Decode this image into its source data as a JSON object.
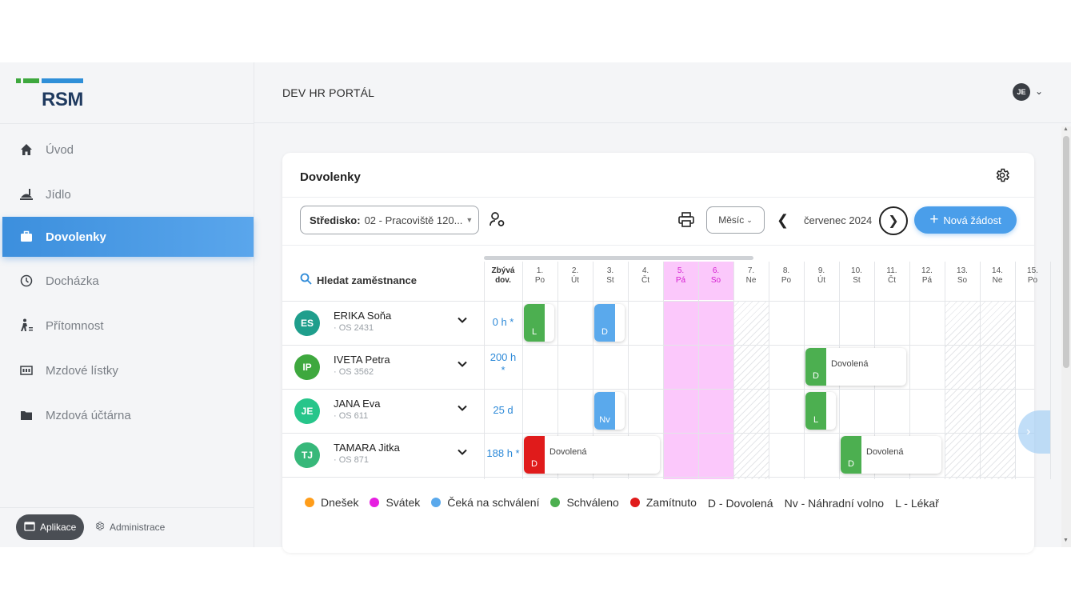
{
  "app": {
    "logo_text": "RSM",
    "portal_title": "DEV HR PORTÁL",
    "user_initials": "JE"
  },
  "sidebar": {
    "items": [
      {
        "label": "Úvod",
        "icon": "home-icon"
      },
      {
        "label": "Jídlo",
        "icon": "food-icon"
      },
      {
        "label": "Dovolenky",
        "icon": "briefcase-icon",
        "active": true
      },
      {
        "label": "Docházka",
        "icon": "clock-icon"
      },
      {
        "label": "Přítomnost",
        "icon": "walking-person-icon"
      },
      {
        "label": "Mzdové lístky",
        "icon": "payslip-icon"
      },
      {
        "label": "Mzdová účtárna",
        "icon": "folder-icon"
      }
    ],
    "apps_label": "Aplikace",
    "admin_label": "Administrace"
  },
  "card": {
    "title": "Dovolenky",
    "filter_label": "Středisko:",
    "filter_value": "02 - Pracoviště 120...",
    "period_label": "Měsíc",
    "month": "červenec 2024",
    "new_request": "Nová žádost"
  },
  "grid": {
    "search_label": "Hledat zaměstnance",
    "remaining_header_line1": "Zbývá",
    "remaining_header_line2": "dov.",
    "days": [
      {
        "num": "1.",
        "dow": "Po",
        "type": "work"
      },
      {
        "num": "2.",
        "dow": "Út",
        "type": "work"
      },
      {
        "num": "3.",
        "dow": "St",
        "type": "work"
      },
      {
        "num": "4.",
        "dow": "Čt",
        "type": "work"
      },
      {
        "num": "5.",
        "dow": "Pá",
        "type": "holiday"
      },
      {
        "num": "6.",
        "dow": "So",
        "type": "holiday"
      },
      {
        "num": "7.",
        "dow": "Ne",
        "type": "weekend"
      },
      {
        "num": "8.",
        "dow": "Po",
        "type": "work"
      },
      {
        "num": "9.",
        "dow": "Út",
        "type": "work"
      },
      {
        "num": "10.",
        "dow": "St",
        "type": "work"
      },
      {
        "num": "11.",
        "dow": "Čt",
        "type": "work"
      },
      {
        "num": "12.",
        "dow": "Pá",
        "type": "work"
      },
      {
        "num": "13.",
        "dow": "So",
        "type": "weekend"
      },
      {
        "num": "14.",
        "dow": "Ne",
        "type": "weekend"
      },
      {
        "num": "15.",
        "dow": "Po",
        "type": "work"
      }
    ],
    "employees": [
      {
        "initials": "ES",
        "name": "ERIKA Soňa",
        "id": "· OS 2431",
        "remaining": "0 h *",
        "color": "#1f9e8c",
        "blocks": [
          {
            "start_day": 1,
            "days": 1,
            "code": "L",
            "status": "approved",
            "label": ""
          },
          {
            "start_day": 3,
            "days": 1,
            "code": "D",
            "status": "pending",
            "label": ""
          }
        ]
      },
      {
        "initials": "IP",
        "name": "IVETA Petra",
        "id": "· OS 3562",
        "remaining": "200 h *",
        "color": "#3ea83e",
        "blocks": [
          {
            "start_day": 9,
            "days": 3,
            "code": "D",
            "status": "approved",
            "label": "Dovolená"
          }
        ]
      },
      {
        "initials": "JE",
        "name": "JANA Eva",
        "id": "· OS 611",
        "remaining": "25 d",
        "color": "#27c58a",
        "blocks": [
          {
            "start_day": 3,
            "days": 1,
            "code": "Nv",
            "status": "pending",
            "label": ""
          },
          {
            "start_day": 9,
            "days": 1,
            "code": "L",
            "status": "approved",
            "label": ""
          }
        ]
      },
      {
        "initials": "TJ",
        "name": "TAMARA Jitka",
        "id": "· OS 871",
        "remaining": "188 h *",
        "color": "#37b87a",
        "blocks": [
          {
            "start_day": 1,
            "days": 4,
            "code": "D",
            "status": "rejected",
            "label": "Dovolená"
          },
          {
            "start_day": 10,
            "days": 3,
            "code": "D",
            "status": "approved",
            "label": "Dovolená"
          }
        ]
      }
    ]
  },
  "legend": {
    "items": [
      {
        "label": "Dnešek",
        "color": "#ff9d1a"
      },
      {
        "label": "Svátek",
        "color": "#e61fe0"
      },
      {
        "label": "Čeká na schválení",
        "color": "#5aa9ec"
      },
      {
        "label": "Schváleno",
        "color": "#4caf50"
      },
      {
        "label": "Zamítnuto",
        "color": "#e01b1b"
      },
      {
        "label": "D - Dovolená",
        "color": ""
      },
      {
        "label": "Nv - Náhradní volno",
        "color": ""
      },
      {
        "label": "L - Lékař",
        "color": ""
      }
    ]
  },
  "status_colors": {
    "approved": "green",
    "pending": "blue",
    "rejected": "red"
  }
}
